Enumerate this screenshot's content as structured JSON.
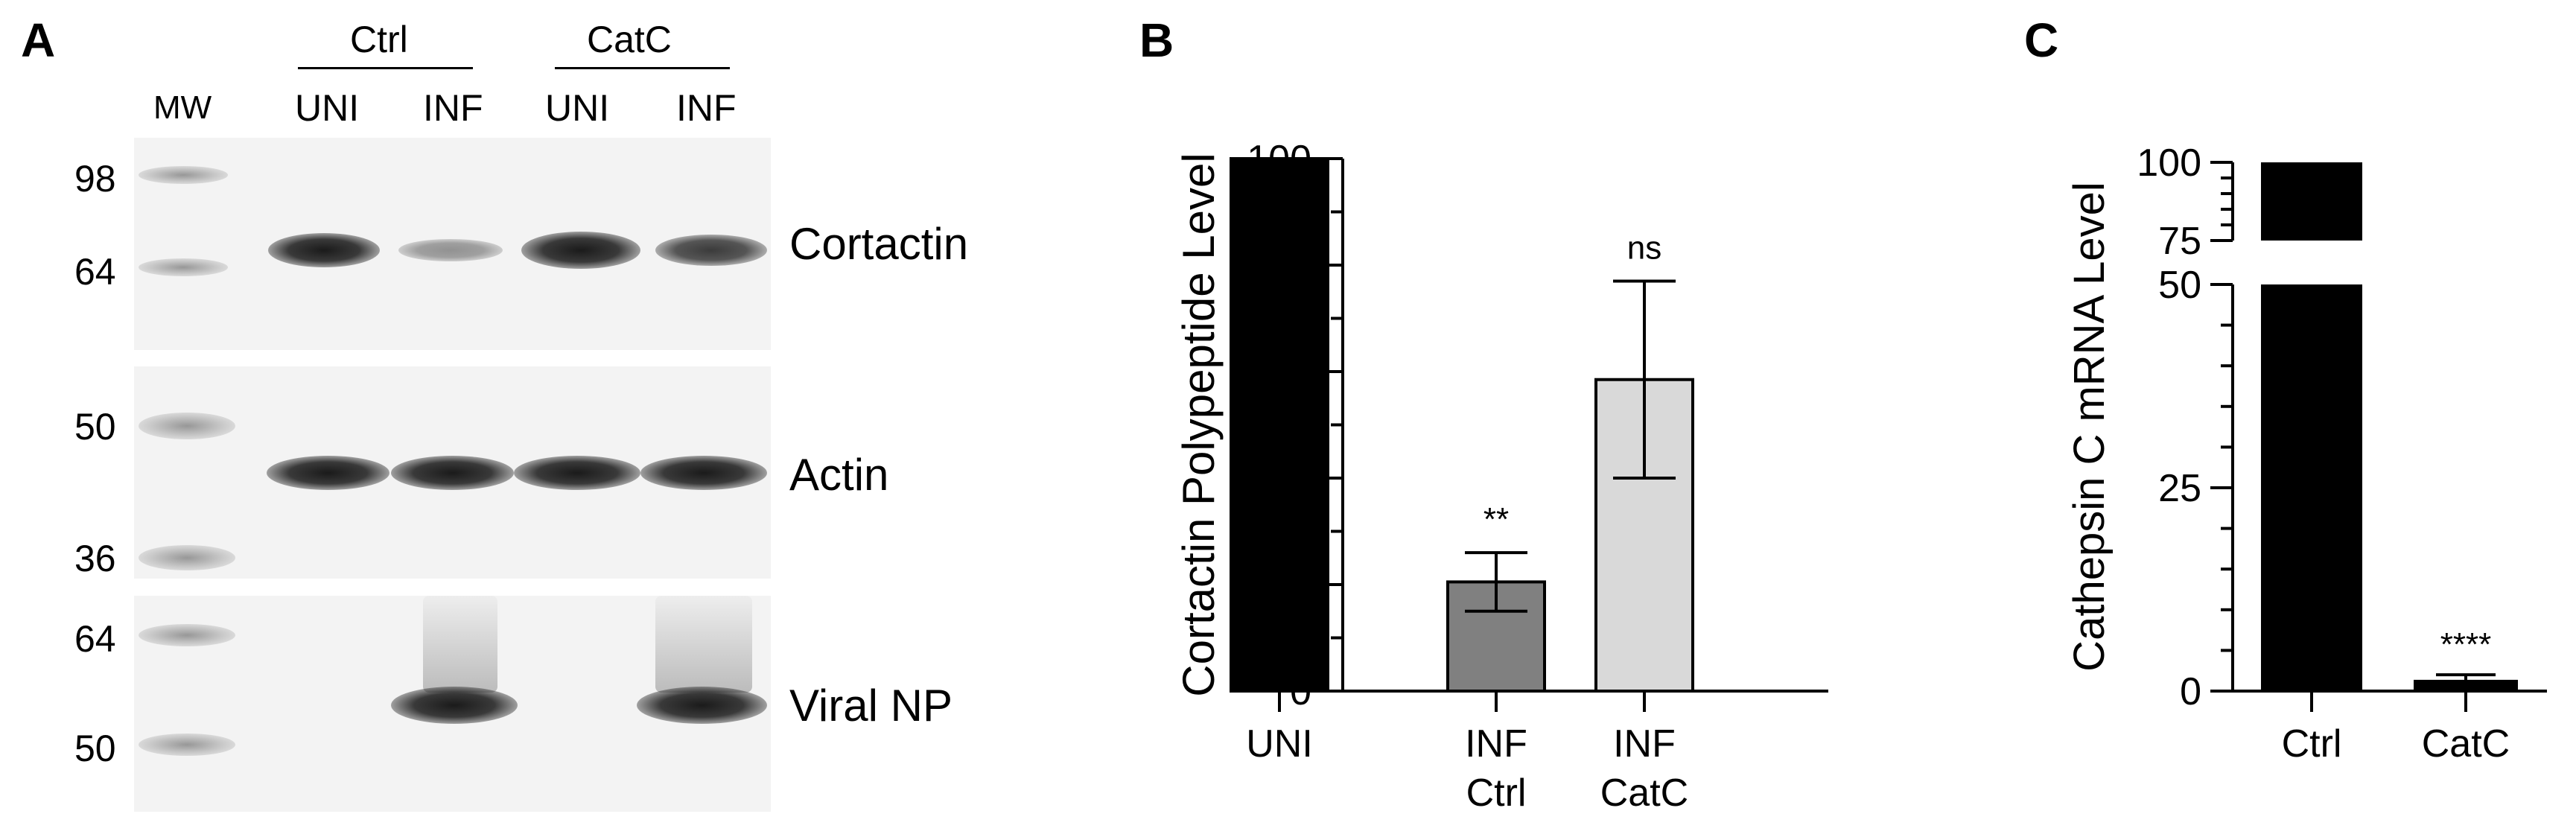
{
  "panels": {
    "a": {
      "letter": "A"
    },
    "b": {
      "letter": "B"
    },
    "c": {
      "letter": "C"
    }
  },
  "blot": {
    "group_labels": [
      "Ctrl",
      "CatC"
    ],
    "lane_labels": [
      "MW",
      "UNI",
      "INF",
      "UNI",
      "INF"
    ],
    "rows": [
      {
        "label": "Cortactin",
        "mw_markers": [
          "98",
          "64"
        ],
        "band_intensity": [
          1.0,
          0.35,
          1.0,
          0.75
        ]
      },
      {
        "label": "Actin",
        "mw_markers": [
          "50",
          "36"
        ],
        "band_intensity": [
          1.0,
          1.0,
          1.0,
          1.0
        ]
      },
      {
        "label": "Viral NP",
        "mw_markers": [
          "64",
          "50"
        ],
        "band_intensity": [
          0.0,
          1.0,
          0.0,
          1.0
        ]
      }
    ]
  },
  "chart_data": [
    {
      "type": "bar",
      "ylabel": "Cortactin Polypeptide Level",
      "categories": [
        [
          "UNI"
        ],
        [
          "INF",
          "Ctrl"
        ],
        [
          "INF",
          "CatC"
        ]
      ],
      "values": [
        100,
        20.5,
        58.5
      ],
      "errors": [
        0,
        5.5,
        18.5
      ],
      "significance": [
        "",
        "**",
        "ns"
      ],
      "bar_colors": [
        "#000000",
        "#808080",
        "#d9d9d9"
      ],
      "ylim": [
        0,
        100
      ],
      "yticks": [
        "0",
        "20",
        "40",
        "60",
        "80",
        "100"
      ],
      "grid": false
    },
    {
      "type": "bar",
      "ylabel": "Cathepsin C mRNA Level",
      "categories": [
        "Ctrl",
        "CatC"
      ],
      "values": [
        100,
        1.2
      ],
      "errors": [
        0,
        0.8
      ],
      "significance": [
        "",
        "****"
      ],
      "bar_colors": [
        "#000000",
        "#000000"
      ],
      "ylim": [
        0,
        100
      ],
      "axis_break": [
        50,
        75
      ],
      "yticks_lower": [
        "0",
        "25",
        "50"
      ],
      "yticks_upper": [
        "75",
        "100"
      ],
      "grid": false
    }
  ]
}
